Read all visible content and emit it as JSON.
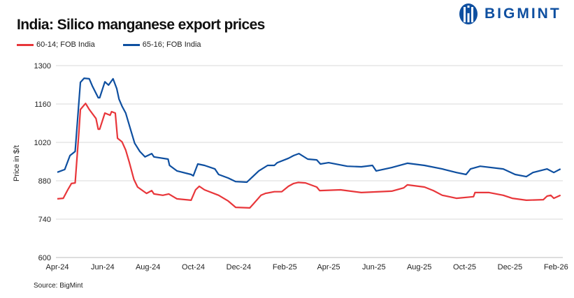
{
  "chart_data": {
    "type": "line",
    "title": "India: Silico manganese export prices",
    "ylabel": "Price in $/t",
    "xlabel": "",
    "ylim": [
      600,
      1300
    ],
    "yticks": [
      600,
      740,
      880,
      1020,
      1160,
      1300
    ],
    "xticks": [
      "Apr-24",
      "Jun-24",
      "Aug-24",
      "Oct-24",
      "Dec-24",
      "Feb-25",
      "Apr-25",
      "Jun-25",
      "Aug-25",
      "Oct-25",
      "Dec-25",
      "Feb-26"
    ],
    "grid": true,
    "legend": "top-left",
    "source": "Source: BigMint",
    "series": [
      {
        "name": "60-14; FOB India",
        "color": "#e8363a",
        "points": [
          [
            "2024-04-01",
            814
          ],
          [
            "2024-04-09",
            816
          ],
          [
            "2024-04-15",
            847
          ],
          [
            "2024-04-20",
            870
          ],
          [
            "2024-04-25",
            872
          ],
          [
            "2024-04-30",
            1056
          ],
          [
            "2024-05-02",
            1140
          ],
          [
            "2024-05-09",
            1162
          ],
          [
            "2024-05-14",
            1140
          ],
          [
            "2024-05-23",
            1107
          ],
          [
            "2024-05-26",
            1068
          ],
          [
            "2024-05-28",
            1068
          ],
          [
            "2024-06-04",
            1127
          ],
          [
            "2024-06-11",
            1119
          ],
          [
            "2024-06-13",
            1132
          ],
          [
            "2024-06-18",
            1127
          ],
          [
            "2024-06-21",
            1035
          ],
          [
            "2024-06-27",
            1022
          ],
          [
            "2024-07-02",
            992
          ],
          [
            "2024-07-07",
            946
          ],
          [
            "2024-07-13",
            885
          ],
          [
            "2024-07-18",
            857
          ],
          [
            "2024-07-30",
            834
          ],
          [
            "2024-08-06",
            844
          ],
          [
            "2024-08-09",
            832
          ],
          [
            "2024-08-21",
            827
          ],
          [
            "2024-08-29",
            832
          ],
          [
            "2024-09-09",
            814
          ],
          [
            "2024-09-28",
            809
          ],
          [
            "2024-10-04",
            847
          ],
          [
            "2024-10-09",
            860
          ],
          [
            "2024-10-16",
            847
          ],
          [
            "2024-11-04",
            827
          ],
          [
            "2024-11-17",
            806
          ],
          [
            "2024-11-27",
            783
          ],
          [
            "2024-12-16",
            781
          ],
          [
            "2024-12-21",
            796
          ],
          [
            "2024-12-31",
            827
          ],
          [
            "2025-01-06",
            834
          ],
          [
            "2025-01-18",
            840
          ],
          [
            "2025-01-28",
            840
          ],
          [
            "2025-02-06",
            860
          ],
          [
            "2025-02-13",
            870
          ],
          [
            "2025-02-19",
            874
          ],
          [
            "2025-03-01",
            872
          ],
          [
            "2025-03-16",
            857
          ],
          [
            "2025-03-20",
            844
          ],
          [
            "2025-04-17",
            847
          ],
          [
            "2025-05-15",
            837
          ],
          [
            "2025-06-25",
            842
          ],
          [
            "2025-07-11",
            854
          ],
          [
            "2025-07-16",
            865
          ],
          [
            "2025-08-08",
            857
          ],
          [
            "2025-08-20",
            844
          ],
          [
            "2025-09-01",
            827
          ],
          [
            "2025-09-20",
            816
          ],
          [
            "2025-10-13",
            822
          ],
          [
            "2025-10-15",
            837
          ],
          [
            "2025-11-03",
            837
          ],
          [
            "2025-11-22",
            827
          ],
          [
            "2025-12-04",
            816
          ],
          [
            "2025-12-23",
            809
          ],
          [
            "2026-01-15",
            811
          ],
          [
            "2026-01-20",
            824
          ],
          [
            "2026-01-25",
            827
          ],
          [
            "2026-01-29",
            816
          ],
          [
            "2026-02-07",
            827
          ]
        ]
      },
      {
        "name": "65-16; FOB India",
        "color": "#0e4fa0",
        "points": [
          [
            "2024-04-01",
            911
          ],
          [
            "2024-04-11",
            921
          ],
          [
            "2024-04-18",
            972
          ],
          [
            "2024-04-25",
            987
          ],
          [
            "2024-05-02",
            1239
          ],
          [
            "2024-05-07",
            1254
          ],
          [
            "2024-05-14",
            1252
          ],
          [
            "2024-05-18",
            1226
          ],
          [
            "2024-05-26",
            1183
          ],
          [
            "2024-05-28",
            1183
          ],
          [
            "2024-06-04",
            1241
          ],
          [
            "2024-06-09",
            1229
          ],
          [
            "2024-06-15",
            1252
          ],
          [
            "2024-06-20",
            1216
          ],
          [
            "2024-06-23",
            1178
          ],
          [
            "2024-06-27",
            1152
          ],
          [
            "2024-07-02",
            1127
          ],
          [
            "2024-07-09",
            1063
          ],
          [
            "2024-07-14",
            1017
          ],
          [
            "2024-07-21",
            987
          ],
          [
            "2024-07-28",
            967
          ],
          [
            "2024-08-06",
            979
          ],
          [
            "2024-08-09",
            967
          ],
          [
            "2024-08-28",
            959
          ],
          [
            "2024-08-30",
            936
          ],
          [
            "2024-09-09",
            916
          ],
          [
            "2024-09-28",
            903
          ],
          [
            "2024-10-01",
            898
          ],
          [
            "2024-10-07",
            941
          ],
          [
            "2024-10-16",
            936
          ],
          [
            "2024-10-30",
            923
          ],
          [
            "2024-11-04",
            903
          ],
          [
            "2024-11-17",
            890
          ],
          [
            "2024-11-27",
            877
          ],
          [
            "2024-12-12",
            875
          ],
          [
            "2024-12-18",
            890
          ],
          [
            "2024-12-28",
            916
          ],
          [
            "2025-01-09",
            936
          ],
          [
            "2025-01-18",
            936
          ],
          [
            "2025-01-22",
            946
          ],
          [
            "2025-02-06",
            962
          ],
          [
            "2025-02-13",
            972
          ],
          [
            "2025-02-20",
            979
          ],
          [
            "2025-03-04",
            959
          ],
          [
            "2025-03-16",
            956
          ],
          [
            "2025-03-21",
            941
          ],
          [
            "2025-04-01",
            946
          ],
          [
            "2025-04-26",
            933
          ],
          [
            "2025-05-15",
            931
          ],
          [
            "2025-05-30",
            936
          ],
          [
            "2025-06-04",
            916
          ],
          [
            "2025-06-25",
            928
          ],
          [
            "2025-07-16",
            944
          ],
          [
            "2025-08-08",
            936
          ],
          [
            "2025-09-01",
            923
          ],
          [
            "2025-09-20",
            910
          ],
          [
            "2025-10-03",
            903
          ],
          [
            "2025-10-09",
            923
          ],
          [
            "2025-10-22",
            933
          ],
          [
            "2025-11-22",
            923
          ],
          [
            "2025-12-08",
            903
          ],
          [
            "2025-12-23",
            895
          ],
          [
            "2026-01-01",
            910
          ],
          [
            "2026-01-20",
            923
          ],
          [
            "2026-01-29",
            910
          ],
          [
            "2026-02-07",
            923
          ]
        ]
      }
    ]
  },
  "brand": {
    "logo_text": "BIGMINT",
    "color": "#0e4fa0"
  }
}
